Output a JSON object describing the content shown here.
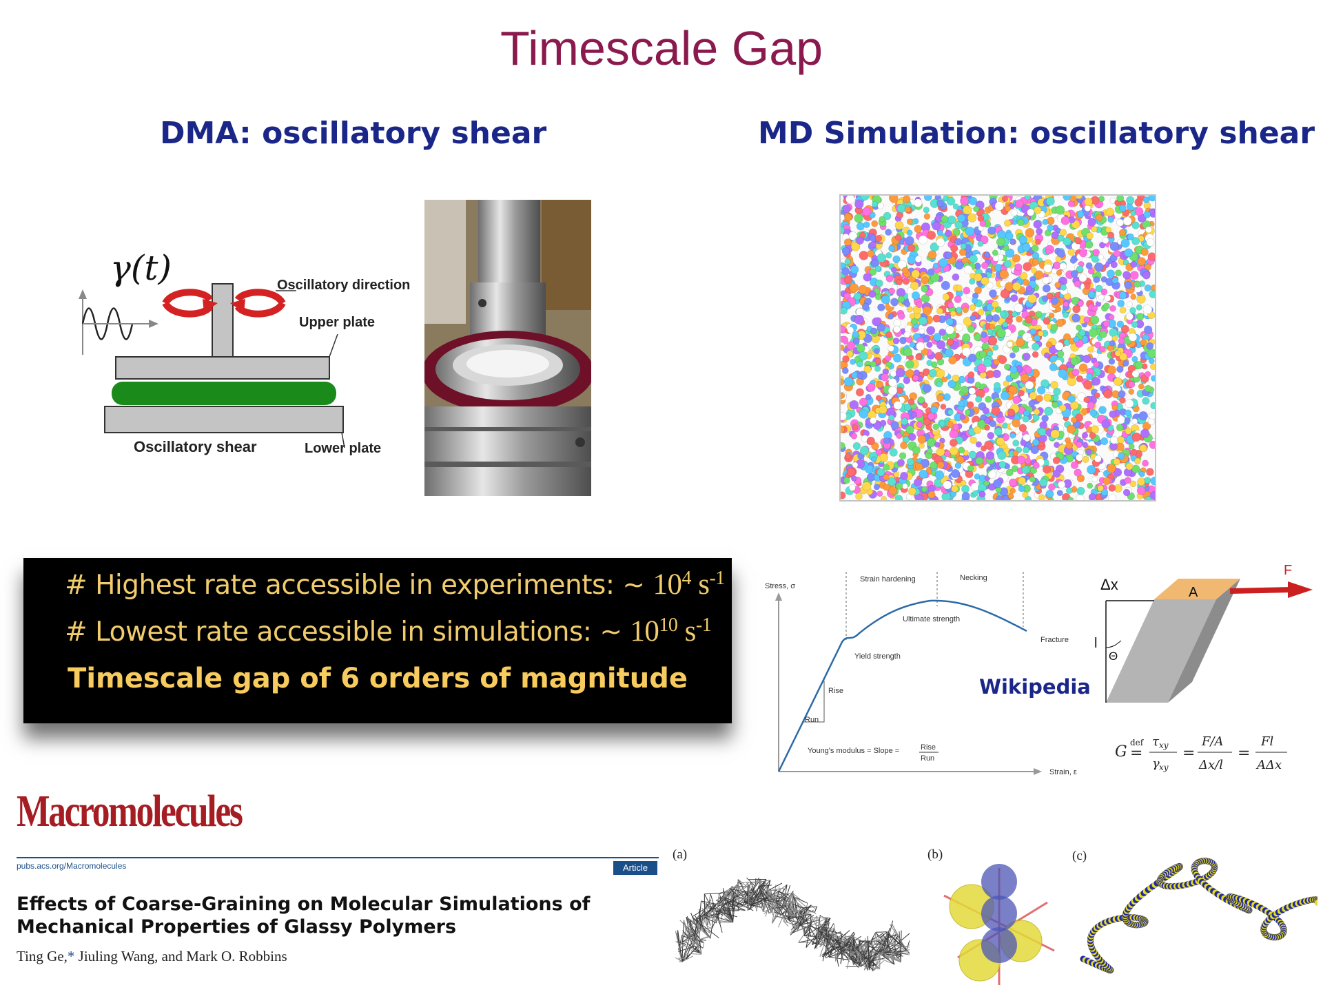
{
  "slide": {
    "title": "Timescale Gap",
    "left_heading": "DMA: oscillatory shear",
    "right_heading": "MD Simulation: oscillatory shear"
  },
  "dma_diagram": {
    "gamma_label": "γ(t)",
    "label_oscillatory_direction": "Oscillatory direction",
    "label_upper_plate": "Upper plate",
    "label_oscillatory_shear": "Oscillatory shear",
    "label_lower_plate": "Lower plate",
    "colors": {
      "sample": "#1a8a1a",
      "plate": "#c4c4c4",
      "arrow": "#d42222"
    }
  },
  "rate_box": {
    "line1_text": "# Highest rate accessible in experiments: ~ ",
    "line1_base": "10",
    "line1_exp": "4",
    "line1_unit": " s",
    "line1_unit_exp": "-1",
    "line2_text": "# Lowest rate accessible in simulations: ~ ",
    "line2_base": "10",
    "line2_exp": "10",
    "line2_unit": " s",
    "line2_unit_exp": "-1",
    "gap_text": "Timescale gap of 6 orders of magnitude"
  },
  "stress_strain": {
    "y_axis": "Stress, σ",
    "x_axis": "Strain, ε",
    "strain_hardening": "Strain hardening",
    "necking": "Necking",
    "ultimate_strength": "Ultimate strength",
    "fracture": "Fracture",
    "yield_strength": "Yield strength",
    "rise": "Rise",
    "run": "Run",
    "youngs_modulus": "Young's modulus = Slope =",
    "frac_num": "Rise",
    "frac_den": "Run",
    "source": "Wikipedia"
  },
  "shear_diagram": {
    "force": "F",
    "delta_x": "Δx",
    "area": "A",
    "length": "l",
    "theta": "Θ",
    "formula": "G = τxy/γxy = (F/A)/(Δx/l) = Fl/(AΔx)"
  },
  "paper": {
    "journal": "Macromolecules",
    "url": "pubs.acs.org/Macromolecules",
    "badge": "Article",
    "title": "Effects of Coarse-Graining on Molecular Simulations of Mechanical Properties of Glassy Polymers",
    "authors_prefix": "Ting Ge,",
    "authors_star": "*",
    "authors_rest": " Jiuling Wang, and Mark O. Robbins",
    "panel_a": "(a)",
    "panel_b": "(b)",
    "panel_c": "(c)"
  }
}
